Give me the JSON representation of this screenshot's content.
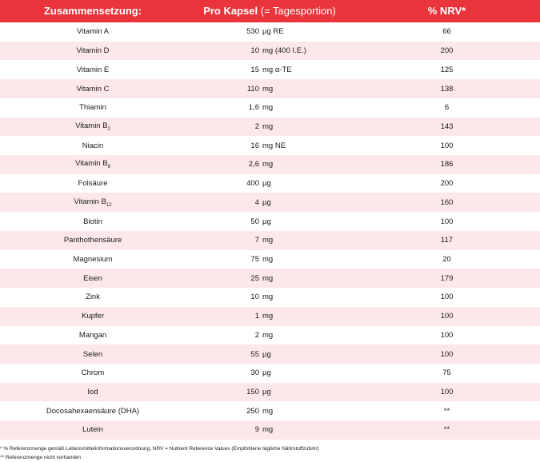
{
  "header": {
    "name": "Zusammensetzung:",
    "amount_bold": "Pro Kapsel",
    "amount_light": "(= Tagesportion)",
    "nrv": "% NRV*"
  },
  "rows": [
    {
      "name": "Vitamin A",
      "sub": "",
      "amount": "530",
      "unit": "µg RE",
      "nrv": "66"
    },
    {
      "name": "Vitamin D",
      "sub": "",
      "amount": "10",
      "unit": "mg (400 I.E.)",
      "nrv": "200"
    },
    {
      "name": "Vitamin E",
      "sub": "",
      "amount": "15",
      "unit": "mg α-TE",
      "nrv": "125"
    },
    {
      "name": "Vitamin C",
      "sub": "",
      "amount": "110",
      "unit": "mg",
      "nrv": "138"
    },
    {
      "name": "Thiamin",
      "sub": "",
      "amount": "1,6",
      "unit": "mg",
      "nrv": "6"
    },
    {
      "name": "Vitamin B",
      "sub": "2",
      "amount": "2",
      "unit": "mg",
      "nrv": "143"
    },
    {
      "name": "Niacin",
      "sub": "",
      "amount": "16",
      "unit": "mg NE",
      "nrv": "100"
    },
    {
      "name": "Vitamin B",
      "sub": "6",
      "amount": "2,6",
      "unit": "mg",
      "nrv": "186"
    },
    {
      "name": "Folsäure",
      "sub": "",
      "amount": "400",
      "unit": "µg",
      "nrv": "200"
    },
    {
      "name": "Vitamin B",
      "sub": "12",
      "amount": "4",
      "unit": "µg",
      "nrv": "160"
    },
    {
      "name": "Biotin",
      "sub": "",
      "amount": "50",
      "unit": "µg",
      "nrv": "100"
    },
    {
      "name": "Panthothensäure",
      "sub": "",
      "amount": "7",
      "unit": "mg",
      "nrv": "117"
    },
    {
      "name": "Magnesium",
      "sub": "",
      "amount": "75",
      "unit": "mg",
      "nrv": "20"
    },
    {
      "name": "Eisen",
      "sub": "",
      "amount": "25",
      "unit": "mg",
      "nrv": "179"
    },
    {
      "name": "Zink",
      "sub": "",
      "amount": "10",
      "unit": "mg",
      "nrv": "100"
    },
    {
      "name": "Kupfer",
      "sub": "",
      "amount": "1",
      "unit": "mg",
      "nrv": "100"
    },
    {
      "name": "Mangan",
      "sub": "",
      "amount": "2",
      "unit": "mg",
      "nrv": "100"
    },
    {
      "name": "Selen",
      "sub": "",
      "amount": "55",
      "unit": "µg",
      "nrv": "100"
    },
    {
      "name": "Chrom",
      "sub": "",
      "amount": "30",
      "unit": "µg",
      "nrv": "75"
    },
    {
      "name": "Iod",
      "sub": "",
      "amount": "150",
      "unit": "µg",
      "nrv": "100"
    },
    {
      "name": "Docosahexaensäure (DHA)",
      "sub": "",
      "amount": "250",
      "unit": "mg",
      "nrv": "**"
    },
    {
      "name": "Lutein",
      "sub": "",
      "amount": "9",
      "unit": "mg",
      "nrv": "**"
    }
  ],
  "footnotes": [
    "* % Referenzmenge gemäß Lebensmittelinformationsverordnung, NRV = Nutrient Reference Values (Empfohlene tägliche Nährstoffzufuhr)",
    "** Referenzmenge nicht vorhanden"
  ]
}
